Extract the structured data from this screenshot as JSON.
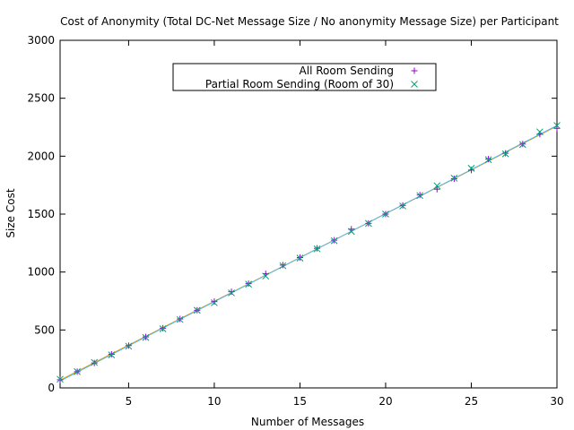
{
  "chart_data": {
    "type": "scatter",
    "title": "Cost of Anonymity (Total DC-Net Message Size / No anonymity Message Size) per Participant",
    "xlabel": "Number of Messages",
    "ylabel": "Size Cost",
    "xlim": [
      1,
      30
    ],
    "ylim": [
      0,
      3000
    ],
    "xticks": [
      5,
      10,
      15,
      20,
      25,
      30
    ],
    "yticks": [
      0,
      500,
      1000,
      1500,
      2000,
      2500,
      3000
    ],
    "grid": false,
    "legend_position": "top-center",
    "series": [
      {
        "name": "All Room Sending",
        "marker": "plus",
        "color": "#9400d3",
        "fit_color": "#e6a000",
        "x": [
          1,
          2,
          3,
          4,
          5,
          6,
          7,
          8,
          9,
          10,
          11,
          12,
          13,
          14,
          15,
          16,
          17,
          18,
          19,
          20,
          21,
          22,
          23,
          24,
          25,
          26,
          27,
          28,
          29,
          30
        ],
        "y": [
          70,
          140,
          215,
          290,
          365,
          440,
          515,
          595,
          670,
          745,
          830,
          900,
          985,
          1060,
          1125,
          1205,
          1275,
          1370,
          1420,
          1500,
          1575,
          1665,
          1715,
          1805,
          1880,
          1975,
          2025,
          2105,
          2190,
          2240
        ]
      },
      {
        "name": "Partial Room Sending (Room of 30)",
        "marker": "cross",
        "color": "#009e73",
        "fit_color": "#56b4e9",
        "x": [
          1,
          2,
          3,
          4,
          5,
          6,
          7,
          8,
          9,
          10,
          11,
          12,
          13,
          14,
          15,
          16,
          17,
          18,
          19,
          20,
          21,
          22,
          23,
          24,
          25,
          26,
          27,
          28,
          29,
          30
        ],
        "y": [
          75,
          140,
          220,
          285,
          360,
          435,
          510,
          590,
          670,
          735,
          820,
          895,
          965,
          1055,
          1120,
          1200,
          1270,
          1350,
          1420,
          1500,
          1570,
          1660,
          1745,
          1810,
          1895,
          1970,
          2020,
          2100,
          2210,
          2265
        ]
      }
    ]
  }
}
